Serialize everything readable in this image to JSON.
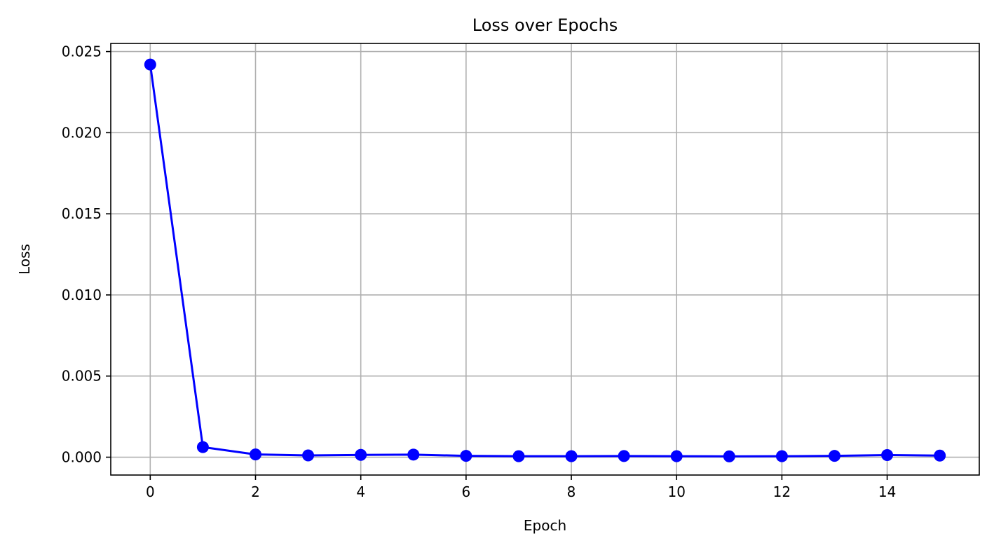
{
  "chart_data": {
    "type": "line",
    "title": "Loss over Epochs",
    "xlabel": "Epoch",
    "ylabel": "Loss",
    "x": [
      0,
      1,
      2,
      3,
      4,
      5,
      6,
      7,
      8,
      9,
      10,
      11,
      12,
      13,
      14,
      15
    ],
    "series": [
      {
        "values": [
          0.0242,
          0.00062,
          0.00017,
          0.00011,
          0.00014,
          0.00016,
          8e-05,
          6e-05,
          6e-05,
          7e-05,
          6e-05,
          5e-05,
          6e-05,
          8e-05,
          0.00013,
          0.0001
        ],
        "color": "#0000ff",
        "marker": "circle"
      }
    ],
    "xlim": [
      -0.75,
      15.75
    ],
    "ylim": [
      -0.0011,
      0.0255
    ],
    "xticks": [
      0,
      2,
      4,
      6,
      8,
      10,
      12,
      14
    ],
    "xtick_labels": [
      "0",
      "2",
      "4",
      "6",
      "8",
      "10",
      "12",
      "14"
    ],
    "yticks": [
      0.0,
      0.005,
      0.01,
      0.015,
      0.02,
      0.025
    ],
    "ytick_labels": [
      "0.000",
      "0.005",
      "0.010",
      "0.015",
      "0.020",
      "0.025"
    ],
    "grid": true,
    "grid_color": "#b0b0b0",
    "legend": false
  }
}
